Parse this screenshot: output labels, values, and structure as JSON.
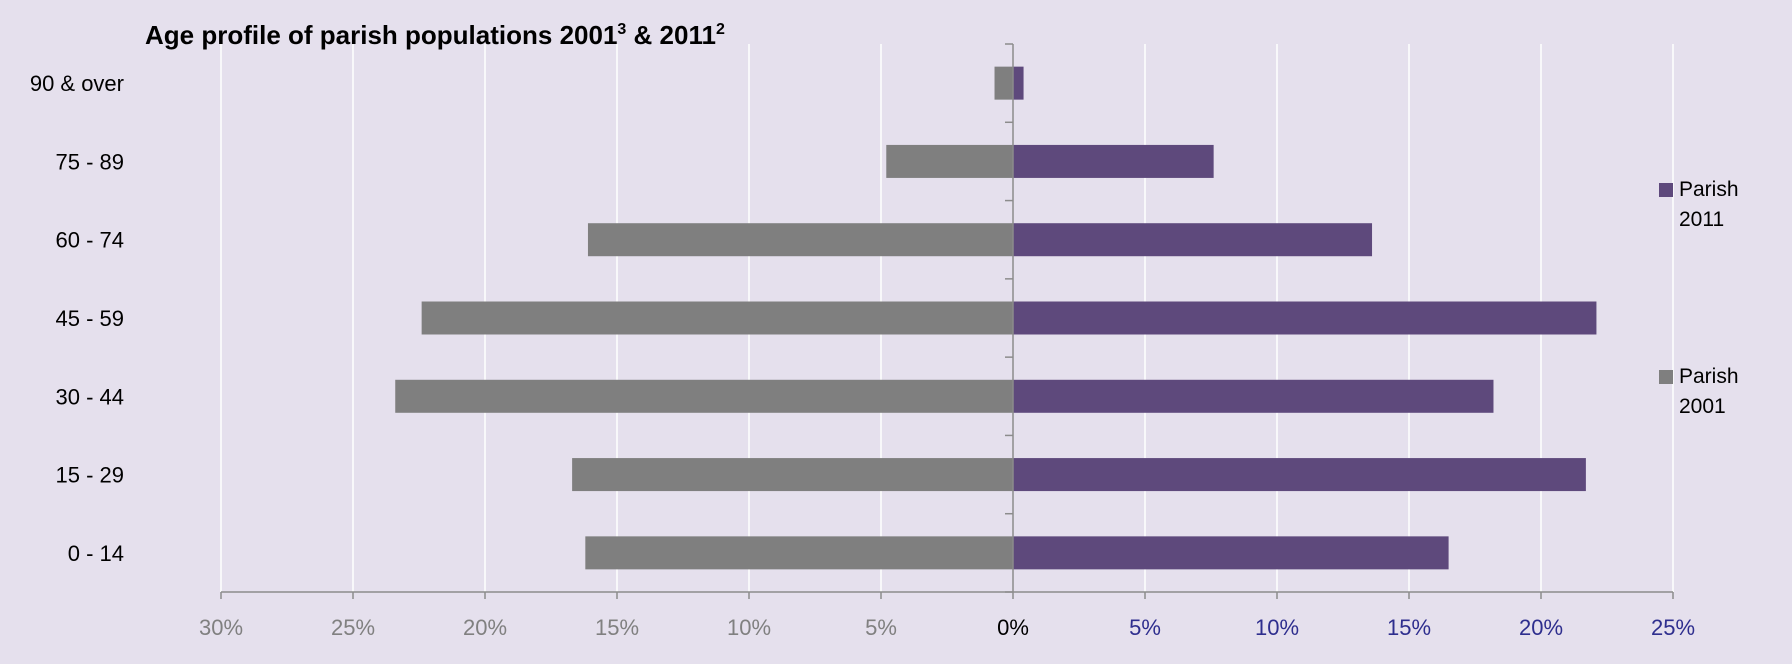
{
  "chart_data": {
    "type": "bar",
    "orientation": "horizontal",
    "title": "Age profile of parish populations 2001",
    "title_sup_1": "3",
    "title_mid": " & 2011",
    "title_sup_2": "2",
    "categories": [
      "0 - 14",
      "15 - 29",
      "30 - 44",
      "45 - 59",
      "60 - 74",
      "75 - 89",
      "90 & over"
    ],
    "series": [
      {
        "name": "Parish 2011",
        "legend_lines": [
          "Parish",
          "2011"
        ],
        "color": "#5e497c",
        "side": "right",
        "values": [
          16.5,
          21.7,
          18.2,
          22.1,
          13.6,
          7.6,
          0.4
        ]
      },
      {
        "name": "Parish 2001",
        "legend_lines": [
          "Parish",
          "2001"
        ],
        "color": "#7f7f7f",
        "side": "left",
        "values": [
          16.2,
          16.7,
          23.4,
          22.4,
          16.1,
          4.8,
          0.7
        ]
      }
    ],
    "x_ticks": [
      "30%",
      "25%",
      "20%",
      "15%",
      "10%",
      "5%",
      "0%",
      "5%",
      "10%",
      "15%",
      "20%",
      "25%"
    ],
    "tick_colors": {
      "left": "#808080",
      "zero": "#000000",
      "right": "#2e2e8e"
    },
    "xlim": [
      -30,
      25
    ],
    "grid": true,
    "legend_position": "right",
    "plot_background": "#e5e0ed"
  }
}
